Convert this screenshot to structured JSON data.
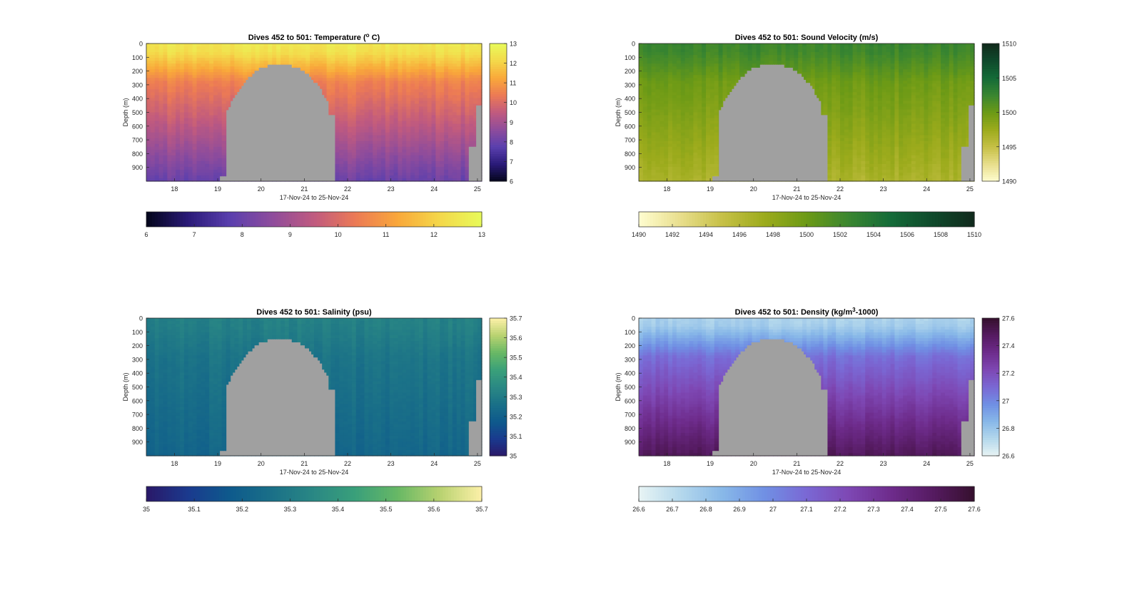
{
  "figure": {
    "background": "#ffffff",
    "bathymetry_color": "#a0a0a0",
    "x_axis_label": "17-Nov-24 to 25-Nov-24",
    "y_axis_label": "Depth (m)",
    "x_ticks": [
      18,
      19,
      20,
      21,
      22,
      23,
      24,
      25
    ],
    "x_range_days": [
      17.35,
      25.1
    ],
    "y_ticks": [
      0,
      100,
      200,
      300,
      400,
      500,
      600,
      700,
      800,
      900
    ],
    "depth_range_m": [
      0,
      1000
    ]
  },
  "chart_data": [
    {
      "type": "heatmap",
      "title_prefix": "Dives 452 to 501: Temperature (",
      "title_sup": "o",
      "title_suffix": " C)",
      "variable": "temperature",
      "colormap": "thermal",
      "colormap_stops": [
        "#03051a",
        "#2a1a78",
        "#5a3fae",
        "#8e4c9c",
        "#c05a7f",
        "#ec7a55",
        "#f9a83a",
        "#f4d84a",
        "#e8fa5a"
      ],
      "clim": [
        6,
        13
      ],
      "vertical_colorbar_ticks": [
        "6",
        "7",
        "8",
        "9",
        "10",
        "11",
        "12",
        "13"
      ],
      "horizontal_colorbar_ticks": [
        "6",
        "7",
        "8",
        "9",
        "10",
        "11",
        "12",
        "13"
      ],
      "surface_value": 12.5,
      "deep_value": 8.0
    },
    {
      "type": "heatmap",
      "title_prefix": "Dives 452 to 501: Sound Velocity (m/s)",
      "title_sup": "",
      "title_suffix": "",
      "variable": "sound_velocity",
      "colormap": "speed",
      "colormap_stops": [
        "#fffdd0",
        "#e8de8c",
        "#c6c046",
        "#9cab1c",
        "#6c9a16",
        "#3a8630",
        "#146b38",
        "#0f4a2c",
        "#112a1c"
      ],
      "clim": [
        1490,
        1510
      ],
      "vertical_colorbar_ticks": [
        "1490",
        "1495",
        "1500",
        "1505",
        "1510"
      ],
      "horizontal_colorbar_ticks": [
        "1490",
        "1492",
        "1494",
        "1496",
        "1498",
        "1500",
        "1502",
        "1504",
        "1506",
        "1508",
        "1510"
      ],
      "surface_value": 1502.5,
      "deep_value": 1496.5
    },
    {
      "type": "heatmap",
      "title_prefix": "Dives 452 to 501: Salinity (psu)",
      "title_sup": "",
      "title_suffix": "",
      "variable": "salinity",
      "colormap": "haline",
      "colormap_stops": [
        "#2a1868",
        "#1a3a8e",
        "#0e5a8c",
        "#1a7088",
        "#2a8884",
        "#3aa07a",
        "#68b865",
        "#b8d270",
        "#fdf0a8"
      ],
      "clim": [
        35,
        35.7
      ],
      "vertical_colorbar_ticks": [
        "35",
        "35.1",
        "35.2",
        "35.3",
        "35.4",
        "35.5",
        "35.6",
        "35.7"
      ],
      "horizontal_colorbar_ticks": [
        "35",
        "35.1",
        "35.2",
        "35.3",
        "35.4",
        "35.5",
        "35.6",
        "35.7"
      ],
      "surface_value": 35.32,
      "deep_value": 35.22
    },
    {
      "type": "heatmap",
      "title_prefix": "Dives 452 to 501: Density (kg/m",
      "title_sup": "3",
      "title_suffix": "-1000)",
      "variable": "density",
      "colormap": "dense",
      "colormap_stops": [
        "#e8f4f4",
        "#b4d8ec",
        "#88b8e8",
        "#7090e4",
        "#7a68d4",
        "#7e48b4",
        "#6e2c8c",
        "#561b62",
        "#36102e"
      ],
      "clim": [
        26.6,
        27.6
      ],
      "vertical_colorbar_ticks": [
        "26.6",
        "26.8",
        "27",
        "27.2",
        "27.4",
        "27.6"
      ],
      "horizontal_colorbar_ticks": [
        "26.6",
        "26.7",
        "26.8",
        "26.9",
        "27",
        "27.1",
        "27.2",
        "27.3",
        "27.4",
        "27.5",
        "27.6"
      ],
      "surface_value": 26.75,
      "deep_value": 27.5
    }
  ]
}
